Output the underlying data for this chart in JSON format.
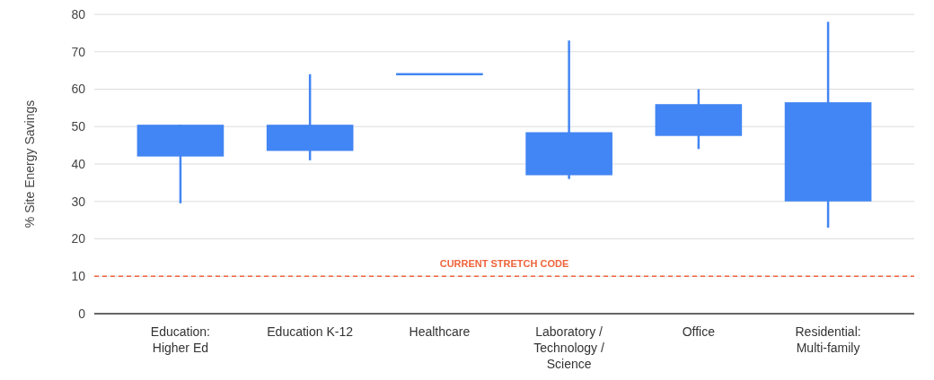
{
  "chart_data": {
    "type": "candlestick",
    "ylabel": "% Site Energy Savings",
    "categories": [
      "Education: Higher Ed",
      "Education K-12",
      "Healthcare",
      "Laboratory / Technology / Science",
      "Office",
      "Residential: Multi-family"
    ],
    "ohlc": [
      [
        50.5,
        50.5,
        29.5,
        42
      ],
      [
        50.5,
        64,
        41,
        43.5
      ],
      [
        64,
        64,
        64,
        64
      ],
      [
        48.5,
        73,
        36,
        37
      ],
      [
        56,
        60,
        44,
        47.5
      ],
      [
        56.5,
        78,
        23,
        30
      ]
    ],
    "color": "#4285f4",
    "ylim": [
      0,
      80
    ],
    "yticks": [
      0,
      10,
      20,
      30,
      40,
      50,
      60,
      70,
      80
    ],
    "grid": true,
    "ref_lines": [
      {
        "axis": "y",
        "value": 10,
        "label": "CURRENT STRETCH CODE",
        "color": "#f0643c",
        "line_style": "dashed"
      }
    ]
  }
}
